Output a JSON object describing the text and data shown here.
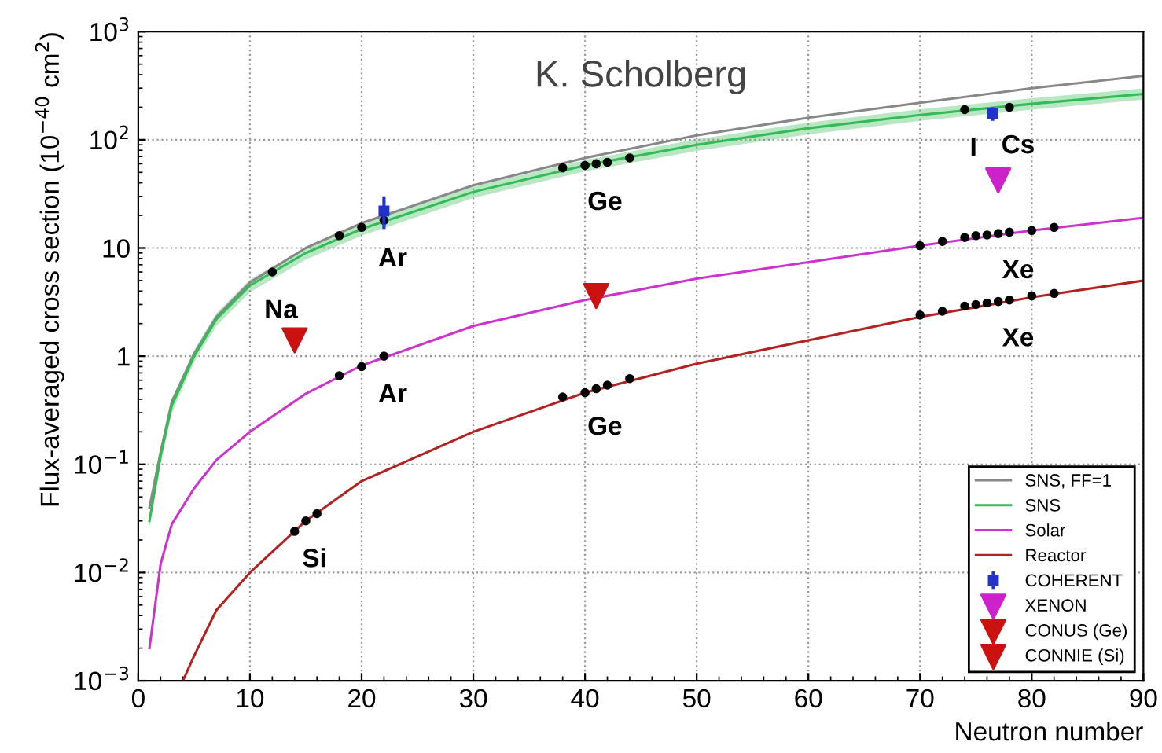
{
  "chart_data": {
    "type": "line",
    "xlabel": "Neutron number",
    "ylabel": "Flux-averaged cross section (10$^{−40}$ cm$^{2}$)",
    "log": "y",
    "grid": true,
    "legend": "bottom right",
    "xlim": [
      0,
      90
    ],
    "xticks": [
      0,
      10,
      20,
      30,
      40,
      50,
      60,
      70,
      80,
      90
    ],
    "ylim": [
      0.001,
      1000
    ],
    "yticks": [
      {
        "value": 0.001,
        "label": "10$^{−3}$"
      },
      {
        "value": 0.01,
        "label": "10$^{−2}$"
      },
      {
        "value": 0.1,
        "label": "10$^{−1}$"
      },
      1,
      10,
      {
        "value": 100,
        "label": "10$^{2}$"
      },
      {
        "value": 1000,
        "label": "10$^{3}$"
      }
    ],
    "series": [
      {
        "name": "SNS, FF=1",
        "color": "#888888",
        "marker": "none",
        "x": [
          1,
          2,
          3,
          5,
          7,
          10,
          15,
          20,
          30,
          40,
          50,
          60,
          70,
          80,
          90
        ],
        "values": [
          0.04,
          0.13,
          0.38,
          1.05,
          2.3,
          4.8,
          10,
          17,
          38,
          68,
          110,
          160,
          220,
          300,
          390
        ]
      },
      {
        "name": "SNS",
        "color": "#33bb55",
        "marker": "none",
        "x": [
          1,
          2,
          3,
          5,
          7,
          10,
          15,
          20,
          30,
          40,
          50,
          60,
          70,
          80,
          90
        ],
        "values": [
          0.03,
          0.12,
          0.35,
          1.0,
          2.2,
          4.5,
          9,
          15,
          33,
          58,
          90,
          128,
          170,
          215,
          265
        ],
        "lower": [
          0.026,
          0.1,
          0.3,
          0.88,
          1.9,
          3.9,
          7.8,
          13,
          29,
          51,
          79,
          112,
          150,
          190,
          235
        ],
        "upper": [
          0.034,
          0.14,
          0.4,
          1.14,
          2.5,
          5.1,
          10.2,
          17,
          37,
          65,
          101,
          144,
          192,
          242,
          298
        ]
      },
      {
        "name": "Solar",
        "color": "#cc33cc",
        "marker": "none",
        "x": [
          1,
          2,
          3,
          5,
          7,
          10,
          15,
          20,
          30,
          40,
          50,
          60,
          70,
          80,
          90
        ],
        "values": [
          0.002,
          0.012,
          0.028,
          0.06,
          0.11,
          0.2,
          0.45,
          0.82,
          1.9,
          3.3,
          5.2,
          7.4,
          10.5,
          14.5,
          19
        ]
      },
      {
        "name": "Reactor",
        "color": "#b22222",
        "marker": "none",
        "x": [
          4,
          5,
          7,
          10,
          15,
          20,
          30,
          40,
          50,
          60,
          70,
          80,
          90
        ],
        "values": [
          0.001,
          0.0017,
          0.0045,
          0.01,
          0.03,
          0.07,
          0.2,
          0.46,
          0.85,
          1.4,
          2.3,
          3.5,
          5
        ]
      },
      {
        "type": "scatter",
        "color": "#000000",
        "marker": "circle",
        "x": [
          12,
          18,
          20,
          22,
          38,
          40,
          41,
          42,
          44,
          74,
          78
        ],
        "values": [
          6,
          13,
          15.5,
          18,
          55,
          58,
          60,
          62,
          68,
          190,
          200
        ]
      },
      {
        "type": "scatter",
        "color": "#000000",
        "marker": "circle",
        "x": [
          18,
          20,
          22,
          70,
          72,
          74,
          75,
          76,
          77,
          78,
          80,
          82
        ],
        "values": [
          0.66,
          0.8,
          1.0,
          10.5,
          11.5,
          12.5,
          13,
          13.2,
          13.6,
          14,
          14.5,
          15.5
        ]
      },
      {
        "type": "scatter",
        "color": "#000000",
        "marker": "circle",
        "x": [
          14,
          15,
          16,
          38,
          40,
          41,
          42,
          44,
          70,
          72,
          74,
          75,
          76,
          77,
          78,
          80,
          82
        ],
        "values": [
          0.024,
          0.03,
          0.035,
          0.42,
          0.46,
          0.5,
          0.54,
          0.62,
          2.4,
          2.6,
          2.9,
          3.0,
          3.1,
          3.2,
          3.3,
          3.6,
          3.8
        ]
      },
      {
        "name": "COHERENT",
        "type": "scatter",
        "color": "#2233cc",
        "marker": "square",
        "x": [
          22,
          76.5
        ],
        "values": [
          22,
          175
        ],
        "errors": [
          [
            15,
            30
          ],
          [
            150,
            200
          ]
        ]
      },
      {
        "name": "XENON",
        "type": "scatter",
        "color": "#cc22cc",
        "marker": "triangle",
        "x": [
          77
        ],
        "values": [
          42
        ]
      },
      {
        "name": "CONUS (Ge)",
        "type": "scatter",
        "color": "#cc1111",
        "marker": "triangle",
        "x": [
          41
        ],
        "values": [
          3.6
        ]
      },
      {
        "name": "CONNIE (Si)",
        "type": "scatter",
        "color": "#cc1111",
        "marker": "triangle",
        "x": [
          14
        ],
        "values": [
          1.4
        ]
      }
    ],
    "annotations": [
      "K. Scholberg",
      {
        "text": "Na",
        "x": 12,
        "y": 6
      },
      {
        "text": "Ar",
        "x": 22,
        "y": 18
      },
      {
        "text": "Ar",
        "x": 22,
        "y": 1.0
      },
      {
        "text": "Si",
        "x": 15,
        "y": 0.03
      },
      {
        "text": "Ge",
        "x": 41,
        "y": 60
      },
      {
        "text": "Ge",
        "x": 41,
        "y": 0.5
      },
      {
        "text": "I",
        "x": 74,
        "y": 190
      },
      {
        "text": "Cs",
        "x": 78,
        "y": 200
      },
      {
        "text": "Xe",
        "x": 78,
        "y": 14
      },
      {
        "text": "Xe",
        "x": 78,
        "y": 3.3
      }
    ]
  }
}
